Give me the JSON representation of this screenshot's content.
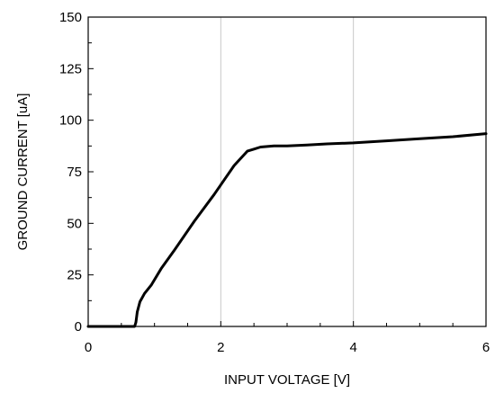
{
  "chart_data": {
    "type": "line",
    "title": "",
    "xlabel": "INPUT VOLTAGE [V]",
    "ylabel": "GROUND CURRENT [uA]",
    "xlim": [
      0,
      6
    ],
    "ylim": [
      0,
      150
    ],
    "grid": true,
    "x_ticks": [
      0,
      2,
      4,
      6
    ],
    "x_tick_labels": [
      "0",
      "2",
      "4",
      "6"
    ],
    "y_ticks": [
      0,
      25,
      50,
      75,
      100,
      125,
      150
    ],
    "y_tick_labels": [
      "0",
      "25",
      "50",
      "75",
      "100",
      "125",
      "150"
    ],
    "series": [
      {
        "name": "",
        "x": [
          0,
          0.3,
          0.7,
          0.72,
          0.74,
          0.78,
          0.85,
          0.95,
          1.1,
          1.3,
          1.6,
          1.9,
          2.2,
          2.4,
          2.5,
          2.6,
          2.8,
          3.0,
          3.3,
          3.6,
          4.0,
          4.5,
          5.0,
          5.5,
          6.0
        ],
        "y": [
          0,
          0,
          0,
          2,
          7,
          12,
          16,
          20,
          28,
          37,
          51,
          64,
          78,
          85,
          86,
          87,
          87.5,
          87.5,
          88,
          88.5,
          89,
          90,
          91,
          92,
          93.5
        ]
      }
    ]
  }
}
